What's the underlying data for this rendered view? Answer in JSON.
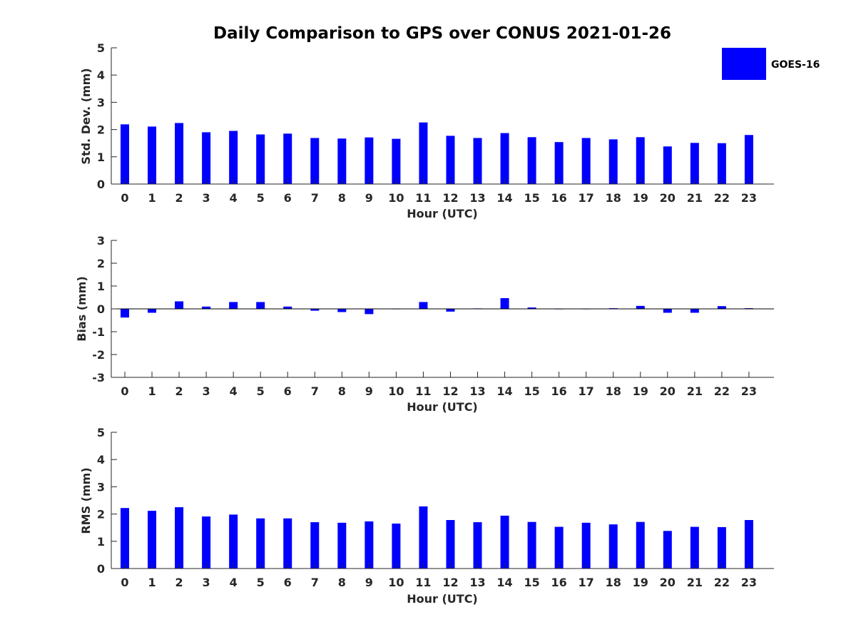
{
  "colors": {
    "bar": "#0000ff",
    "axis": "#262626",
    "background": "#ffffff"
  },
  "chart_data": [
    {
      "type": "bar",
      "title": "Daily Comparison to GPS over CONUS 2021-01-26",
      "xlabel": "Hour (UTC)",
      "ylabel": "Std. Dev. (mm)",
      "ylim": [
        0,
        5
      ],
      "yticks": [
        "0",
        "1",
        "2",
        "3",
        "4",
        "5"
      ],
      "categories": [
        "0",
        "1",
        "2",
        "3",
        "4",
        "5",
        "6",
        "7",
        "8",
        "9",
        "10",
        "11",
        "12",
        "13",
        "14",
        "15",
        "16",
        "17",
        "18",
        "19",
        "20",
        "21",
        "22",
        "23"
      ],
      "legend": "GOES-16",
      "series": [
        {
          "name": "GOES-16",
          "values": [
            2.19,
            2.11,
            2.24,
            1.9,
            1.95,
            1.82,
            1.85,
            1.69,
            1.67,
            1.71,
            1.66,
            2.26,
            1.77,
            1.69,
            1.87,
            1.72,
            1.54,
            1.69,
            1.64,
            1.72,
            1.38,
            1.51,
            1.5,
            1.8
          ]
        }
      ]
    },
    {
      "type": "bar",
      "xlabel": "Hour (UTC)",
      "ylabel": "Bias (mm)",
      "ylim": [
        -3,
        3
      ],
      "yticks": [
        "-3",
        "-2",
        "-1",
        "0",
        "1",
        "2",
        "3"
      ],
      "categories": [
        "0",
        "1",
        "2",
        "3",
        "4",
        "5",
        "6",
        "7",
        "8",
        "9",
        "10",
        "11",
        "12",
        "13",
        "14",
        "15",
        "16",
        "17",
        "18",
        "19",
        "20",
        "21",
        "22",
        "23"
      ],
      "series": [
        {
          "name": "GOES-16",
          "values": [
            -0.38,
            -0.17,
            0.33,
            0.1,
            0.3,
            0.3,
            0.1,
            -0.08,
            -0.14,
            -0.23,
            0.0,
            0.3,
            -0.12,
            0.02,
            0.47,
            0.06,
            -0.02,
            0.0,
            0.03,
            0.13,
            -0.17,
            -0.17,
            0.12,
            0.03
          ]
        }
      ]
    },
    {
      "type": "bar",
      "xlabel": "Hour (UTC)",
      "ylabel": "RMS (mm)",
      "ylim": [
        0,
        5
      ],
      "yticks": [
        "0",
        "1",
        "2",
        "3",
        "4",
        "5"
      ],
      "categories": [
        "0",
        "1",
        "2",
        "3",
        "4",
        "5",
        "6",
        "7",
        "8",
        "9",
        "10",
        "11",
        "12",
        "13",
        "14",
        "15",
        "16",
        "17",
        "18",
        "19",
        "20",
        "21",
        "22",
        "23"
      ],
      "series": [
        {
          "name": "GOES-16",
          "values": [
            2.22,
            2.12,
            2.25,
            1.91,
            1.98,
            1.84,
            1.84,
            1.7,
            1.68,
            1.73,
            1.65,
            2.28,
            1.78,
            1.7,
            1.94,
            1.71,
            1.53,
            1.68,
            1.62,
            1.71,
            1.38,
            1.53,
            1.52,
            1.78
          ]
        }
      ]
    }
  ]
}
